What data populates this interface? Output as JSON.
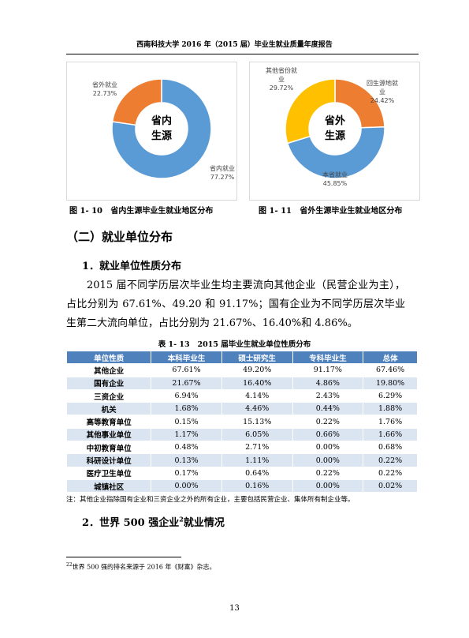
{
  "header": {
    "title": "西南科技大学 2016 年（2015 届）毕业生就业质量年度报告"
  },
  "figures": [
    {
      "caption": "图 1- 10   省内生源毕业生就业地区分布",
      "chart": {
        "type": "pie",
        "center_label": "省内生源",
        "categories": [
          "省内就业",
          "省外就业"
        ],
        "values": [
          77.27,
          22.73
        ],
        "value_labels": [
          "77.27%",
          "22.73%"
        ],
        "colors": [
          "#5b9bd5",
          "#ed7d31"
        ]
      }
    },
    {
      "caption": "图 1- 11   省外生源毕业生就业地区分布",
      "chart": {
        "type": "pie",
        "center_label": "省外生源",
        "categories": [
          "回生源地就业",
          "本省就业",
          "其他省份就业"
        ],
        "values": [
          24.42,
          45.85,
          29.72
        ],
        "value_labels": [
          "24.42%",
          "45.85%",
          "29.72%"
        ],
        "colors": [
          "#ed7d31",
          "#5b9bd5",
          "#ffc000"
        ]
      }
    }
  ],
  "section": {
    "heading": "（二）就业单位分布",
    "subheading": "1．就业单位性质分布",
    "paragraph": "2015 届不同学历层次毕业生均主要流向其他企业（民营企业为主），占比分别为 67.61%、49.20 和 91.17%；国有企业为不同学历层次毕业生第二大流向单位，占比分别为 21.67%、16.40%和 4.86%。"
  },
  "table": {
    "caption": "表 1- 13   2015 届毕业生就业单位性质分布",
    "columns": [
      "单位性质",
      "本科毕业生",
      "硕士研究生",
      "专科毕业生",
      "总体"
    ],
    "rows": [
      [
        "其他企业",
        "67.61%",
        "49.20%",
        "91.17%",
        "67.46%"
      ],
      [
        "国有企业",
        "21.67%",
        "16.40%",
        "4.86%",
        "19.80%"
      ],
      [
        "三资企业",
        "6.94%",
        "4.14%",
        "2.43%",
        "6.29%"
      ],
      [
        "机关",
        "1.68%",
        "4.46%",
        "0.44%",
        "1.88%"
      ],
      [
        "高等教育单位",
        "0.15%",
        "15.13%",
        "0.22%",
        "1.76%"
      ],
      [
        "其他事业单位",
        "1.17%",
        "6.05%",
        "0.66%",
        "1.66%"
      ],
      [
        "中初教育单位",
        "0.48%",
        "2.71%",
        "0.00%",
        "0.68%"
      ],
      [
        "科研设计单位",
        "0.13%",
        "1.11%",
        "0.00%",
        "0.22%"
      ],
      [
        "医疗卫生单位",
        "0.17%",
        "0.64%",
        "0.22%",
        "0.22%"
      ],
      [
        "城镇社区",
        "0.00%",
        "0.16%",
        "0.00%",
        "0.02%"
      ]
    ],
    "note": "注：其他企业指除国有企业和三资企业之外的所有企业，主要包括民营企业、集体所有制企业等。"
  },
  "section2": {
    "heading": "2．世界 500 强企业",
    "sup": "2",
    "heading_rest": "就业情况"
  },
  "footnote": {
    "mark": "22",
    "text": "世界 500 强的排名来源于 2016 年《财富》杂志。"
  },
  "page_number": "13"
}
